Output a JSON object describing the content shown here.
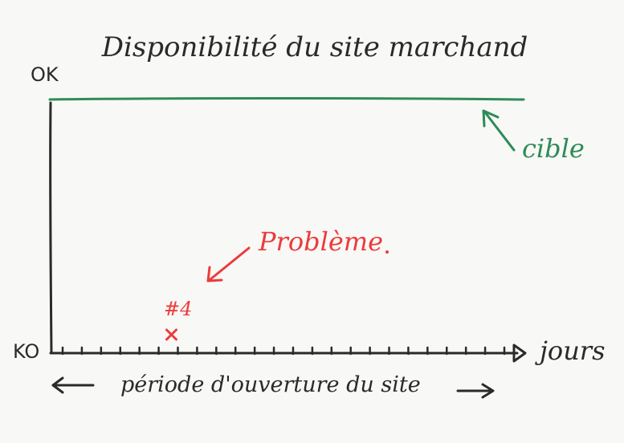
{
  "title": "Disponibilité du site marchand",
  "y_axis": {
    "top_label": "OK",
    "bottom_label": "KO"
  },
  "x_axis": {
    "label": "jours",
    "tick_count": 24
  },
  "target": {
    "label": "cible",
    "level": "OK",
    "color": "#2e8b57"
  },
  "problem": {
    "label": "Problème",
    "marker_label": "#4",
    "marker": "x",
    "day_index": 6,
    "level": "KO",
    "color": "#ec3b3b"
  },
  "period": {
    "label": "période d'ouverture du site"
  },
  "colors": {
    "ink": "#2a2a2a",
    "target": "#2e8b57",
    "problem": "#ec3b3b",
    "board": "#f8f8f6"
  }
}
